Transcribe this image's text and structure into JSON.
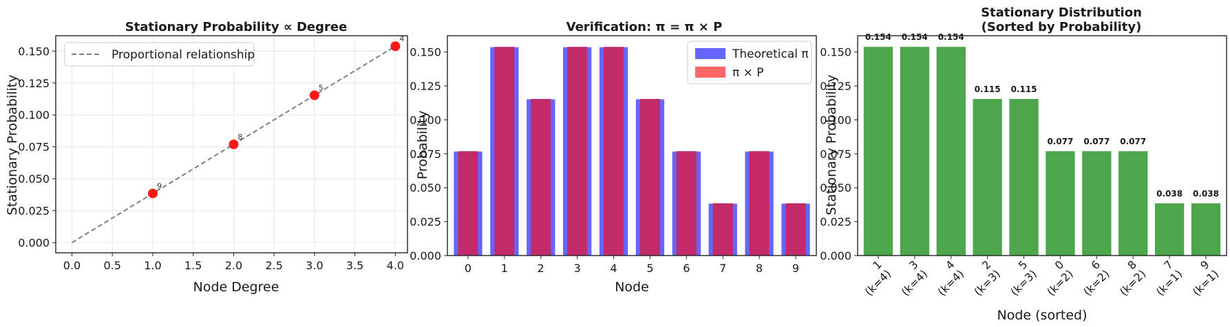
{
  "chart_data": [
    {
      "type": "scatter",
      "title": "Stationary Probability ∝ Degree",
      "xlabel": "Node Degree",
      "ylabel": "Stationary Probability",
      "xlim": [
        -0.2,
        4.15
      ],
      "ylim": [
        -0.008,
        0.162
      ],
      "xticks": [
        "0.0",
        "0.5",
        "1.0",
        "1.5",
        "2.0",
        "2.5",
        "3.0",
        "3.5",
        "4.0"
      ],
      "yticks": [
        "0.000",
        "0.025",
        "0.050",
        "0.075",
        "0.100",
        "0.125",
        "0.150"
      ],
      "grid": true,
      "legend": "top-left",
      "line": {
        "name": "Proportional relationship",
        "x": [
          0,
          4
        ],
        "y": [
          0,
          0.1538
        ],
        "color": "#808080"
      },
      "points": [
        {
          "x": 1,
          "y": 0.0385,
          "label": "9"
        },
        {
          "x": 2,
          "y": 0.0769,
          "label": "8"
        },
        {
          "x": 3,
          "y": 0.1154,
          "label": "5"
        },
        {
          "x": 4,
          "y": 0.1538,
          "label": "4"
        }
      ],
      "point_color": "#ff0000"
    },
    {
      "type": "bar",
      "title": "Verification: π = π × P",
      "xlabel": "Node",
      "ylabel": "Probability",
      "ylim": [
        0,
        0.162
      ],
      "yticks": [
        "0.000",
        "0.025",
        "0.050",
        "0.075",
        "0.100",
        "0.125",
        "0.150"
      ],
      "categories": [
        "0",
        "1",
        "2",
        "3",
        "4",
        "5",
        "6",
        "7",
        "8",
        "9"
      ],
      "legend": "top-right",
      "series": [
        {
          "name": "Theoretical π",
          "values": [
            0.0769,
            0.1538,
            0.1154,
            0.1538,
            0.1538,
            0.1154,
            0.0769,
            0.0385,
            0.0769,
            0.0385
          ],
          "color": "#6666ff"
        },
        {
          "name": "π × P",
          "values": [
            0.0769,
            0.1538,
            0.1154,
            0.1538,
            0.1538,
            0.1154,
            0.0769,
            0.0385,
            0.0769,
            0.0385
          ],
          "color": "#c22a6a"
        }
      ]
    },
    {
      "type": "bar",
      "title": "Stationary Distribution",
      "subtitle": "(Sorted by Probability)",
      "xlabel": "Node (sorted)",
      "ylabel": "Stationary Probability",
      "ylim": [
        0,
        0.162
      ],
      "yticks": [
        "0.000",
        "0.025",
        "0.050",
        "0.075",
        "0.100",
        "0.125",
        "0.150"
      ],
      "categories": [
        [
          "1",
          "(k=4)"
        ],
        [
          "3",
          "(k=4)"
        ],
        [
          "4",
          "(k=4)"
        ],
        [
          "2",
          "(k=3)"
        ],
        [
          "5",
          "(k=3)"
        ],
        [
          "0",
          "(k=2)"
        ],
        [
          "6",
          "(k=2)"
        ],
        [
          "8",
          "(k=2)"
        ],
        [
          "7",
          "(k=1)"
        ],
        [
          "9",
          "(k=1)"
        ]
      ],
      "values": [
        0.1538,
        0.1538,
        0.1538,
        0.1154,
        0.1154,
        0.0769,
        0.0769,
        0.0769,
        0.0385,
        0.0385
      ],
      "value_labels": [
        "0.154",
        "0.154",
        "0.154",
        "0.115",
        "0.115",
        "0.077",
        "0.077",
        "0.077",
        "0.038",
        "0.038"
      ],
      "color": "#4ca64c"
    }
  ]
}
